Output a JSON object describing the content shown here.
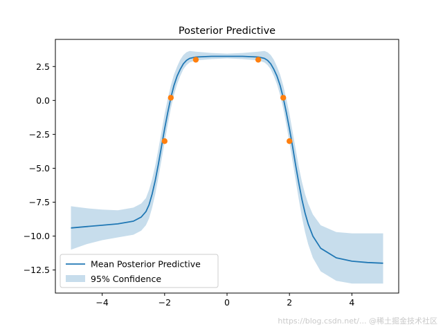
{
  "chart_data": {
    "type": "line",
    "title": "Posterior Predictive",
    "xlabel": "",
    "ylabel": "",
    "xlim": [
      -5.5,
      5.5
    ],
    "ylim": [
      -14.2,
      4.5
    ],
    "xticks": [
      -4,
      -2,
      0,
      2,
      4
    ],
    "xtick_labels": [
      "−4",
      "−2",
      "0",
      "2",
      "4"
    ],
    "yticks": [
      2.5,
      0.0,
      -2.5,
      -5.0,
      -7.5,
      -10.0,
      -12.5
    ],
    "ytick_labels": [
      "2.5",
      "0.0",
      "−2.5",
      "−5.0",
      "−7.5",
      "−10.0",
      "−12.5"
    ],
    "grid": false,
    "legend_position": "lower-left",
    "series": [
      {
        "name": "Mean Posterior Predictive",
        "kind": "line",
        "color": "#1f77b4",
        "x": [
          -5.0,
          -4.5,
          -4.0,
          -3.5,
          -3.0,
          -2.75,
          -2.6,
          -2.5,
          -2.4,
          -2.3,
          -2.2,
          -2.1,
          -2.0,
          -1.9,
          -1.8,
          -1.7,
          -1.6,
          -1.5,
          -1.4,
          -1.3,
          -1.2,
          -1.0,
          -0.5,
          0.0,
          0.5,
          1.0,
          1.2,
          1.3,
          1.4,
          1.5,
          1.6,
          1.7,
          1.8,
          1.9,
          2.0,
          2.1,
          2.2,
          2.3,
          2.4,
          2.5,
          2.6,
          2.75,
          3.0,
          3.5,
          4.0,
          4.5,
          5.0
        ],
        "y": [
          -9.4,
          -9.3,
          -9.2,
          -9.1,
          -8.9,
          -8.6,
          -8.2,
          -7.7,
          -6.9,
          -5.9,
          -4.7,
          -3.4,
          -2.1,
          -0.9,
          0.2,
          1.1,
          1.8,
          2.3,
          2.7,
          2.95,
          3.1,
          3.2,
          3.25,
          3.25,
          3.25,
          3.2,
          3.1,
          2.95,
          2.7,
          2.3,
          1.8,
          1.1,
          0.2,
          -0.9,
          -2.1,
          -3.4,
          -4.8,
          -6.1,
          -7.3,
          -8.3,
          -9.1,
          -10.0,
          -10.9,
          -11.6,
          -11.85,
          -11.95,
          -12.0
        ]
      },
      {
        "name": "95% Confidence",
        "kind": "band",
        "color": "#1f77b4",
        "opacity": 0.25,
        "x": [
          -5.0,
          -4.5,
          -4.0,
          -3.5,
          -3.0,
          -2.75,
          -2.6,
          -2.5,
          -2.4,
          -2.3,
          -2.2,
          -2.1,
          -2.0,
          -1.9,
          -1.8,
          -1.7,
          -1.6,
          -1.5,
          -1.4,
          -1.3,
          -1.2,
          -1.0,
          -0.5,
          0.0,
          0.5,
          1.0,
          1.2,
          1.3,
          1.4,
          1.5,
          1.6,
          1.7,
          1.8,
          1.9,
          2.0,
          2.1,
          2.2,
          2.3,
          2.4,
          2.5,
          2.6,
          2.75,
          3.0,
          3.5,
          4.0,
          4.5,
          5.0
        ],
        "lower": [
          -11.0,
          -10.6,
          -10.3,
          -10.1,
          -9.9,
          -9.6,
          -9.2,
          -8.7,
          -7.9,
          -6.9,
          -5.7,
          -4.4,
          -3.1,
          -1.8,
          -0.6,
          0.4,
          1.2,
          1.8,
          2.3,
          2.6,
          2.8,
          2.95,
          3.05,
          3.1,
          3.05,
          2.95,
          2.8,
          2.6,
          2.3,
          1.8,
          1.2,
          0.4,
          -0.6,
          -1.8,
          -3.1,
          -4.5,
          -5.9,
          -7.3,
          -8.6,
          -9.7,
          -10.6,
          -11.6,
          -12.6,
          -13.3,
          -13.5,
          -13.5,
          -13.5
        ],
        "upper": [
          -7.8,
          -7.95,
          -8.05,
          -8.1,
          -7.9,
          -7.6,
          -7.2,
          -6.6,
          -5.8,
          -4.8,
          -3.6,
          -2.3,
          -1.0,
          0.1,
          1.1,
          1.9,
          2.5,
          3.0,
          3.35,
          3.55,
          3.65,
          3.6,
          3.5,
          3.45,
          3.5,
          3.6,
          3.65,
          3.55,
          3.35,
          3.0,
          2.5,
          1.9,
          1.1,
          0.1,
          -1.0,
          -2.3,
          -3.6,
          -4.9,
          -6.0,
          -6.9,
          -7.6,
          -8.4,
          -9.2,
          -9.7,
          -9.8,
          -9.8,
          -9.8
        ]
      },
      {
        "name": "",
        "kind": "scatter",
        "color": "#ff7f0e",
        "x": [
          -2.0,
          -1.8,
          -1.0,
          1.0,
          1.8,
          2.0
        ],
        "y": [
          -3.0,
          0.2,
          3.0,
          3.0,
          0.2,
          -3.0
        ]
      }
    ]
  },
  "watermark": "https://blog.csdn.net/... @稀土掘金技术社区"
}
